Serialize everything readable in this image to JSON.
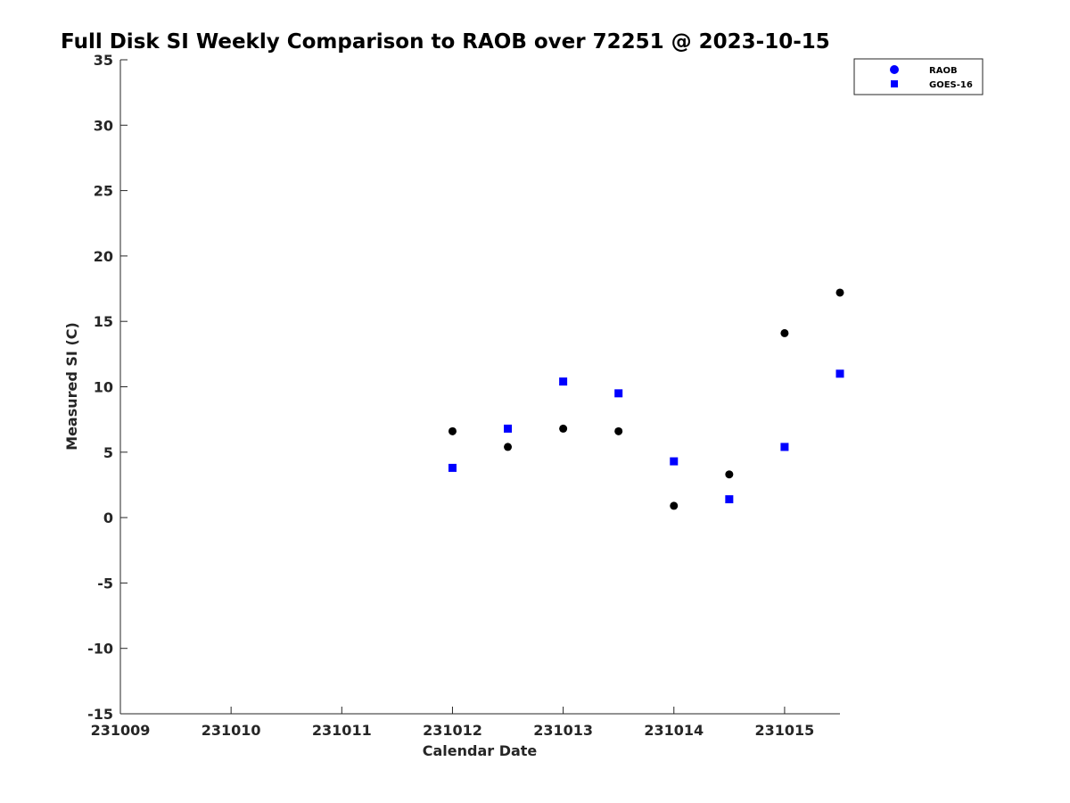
{
  "chart_data": {
    "type": "scatter",
    "title": "Full Disk SI Weekly Comparison to RAOB over 72251 @ 2023-10-15",
    "xlabel": "Calendar Date",
    "ylabel": "Measured SI (C)",
    "xlim": [
      0,
      6.5
    ],
    "ylim": [
      -15,
      35
    ],
    "x_ticks": [
      {
        "value": 0,
        "label": "231009"
      },
      {
        "value": 1,
        "label": "231010"
      },
      {
        "value": 2,
        "label": "231011"
      },
      {
        "value": 3,
        "label": "231012"
      },
      {
        "value": 4,
        "label": "231013"
      },
      {
        "value": 5,
        "label": "231014"
      },
      {
        "value": 6,
        "label": "231015"
      }
    ],
    "y_ticks": [
      35,
      30,
      25,
      20,
      15,
      10,
      5,
      0,
      -5,
      -10,
      -15
    ],
    "legend_position": "top-right",
    "series": [
      {
        "name": "RAOB",
        "marker": "circle",
        "color": "#000000",
        "legend_color": "#0000ff",
        "points": [
          {
            "x": 3.0,
            "y": 6.6
          },
          {
            "x": 3.5,
            "y": 5.4
          },
          {
            "x": 4.0,
            "y": 6.8
          },
          {
            "x": 4.5,
            "y": 6.6
          },
          {
            "x": 5.0,
            "y": 0.9
          },
          {
            "x": 5.5,
            "y": 3.3
          },
          {
            "x": 6.0,
            "y": 14.1
          },
          {
            "x": 6.5,
            "y": 17.2
          }
        ]
      },
      {
        "name": "GOES-16",
        "marker": "square",
        "color": "#0000ff",
        "legend_color": "#0000ff",
        "points": [
          {
            "x": 3.0,
            "y": 3.8
          },
          {
            "x": 3.5,
            "y": 6.8
          },
          {
            "x": 4.0,
            "y": 10.4
          },
          {
            "x": 4.5,
            "y": 9.5
          },
          {
            "x": 5.0,
            "y": 4.3
          },
          {
            "x": 5.5,
            "y": 1.4
          },
          {
            "x": 6.0,
            "y": 5.4
          },
          {
            "x": 6.5,
            "y": 11.0
          }
        ]
      }
    ]
  }
}
